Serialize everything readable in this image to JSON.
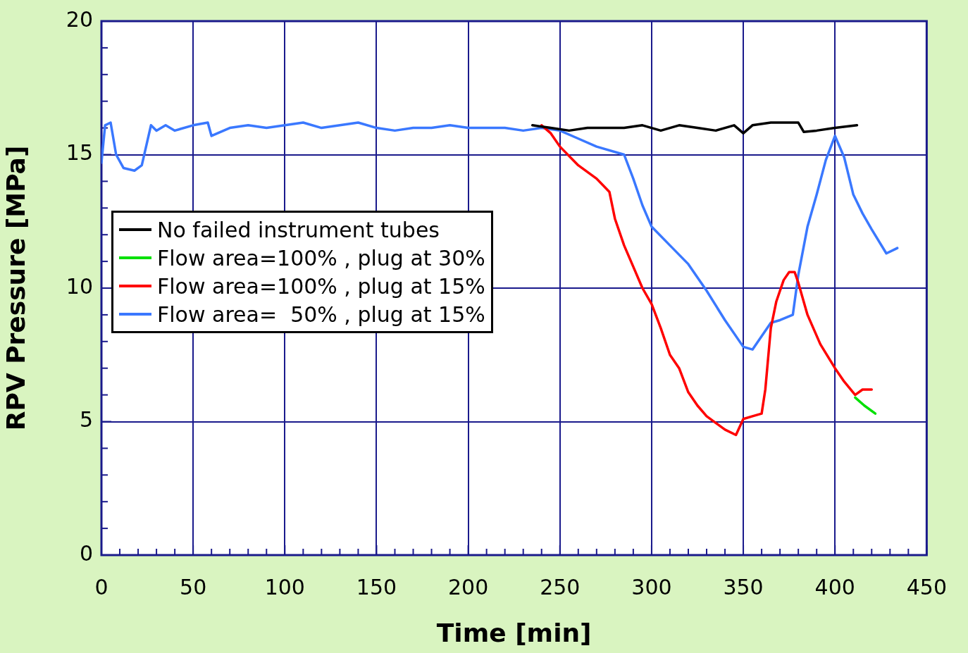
{
  "chart_data": {
    "type": "line",
    "xlabel": "Time [min]",
    "ylabel": "RPV Pressure [MPa]",
    "xlim": [
      0,
      450
    ],
    "ylim": [
      0,
      20
    ],
    "xticks": [
      0,
      {
        "value": 10,
        "label": null
      },
      {
        "value": 20,
        "label": null
      },
      {
        "value": 30,
        "label": null
      },
      {
        "value": 40,
        "label": null
      },
      50,
      {
        "value": 60,
        "label": null
      },
      {
        "value": 70,
        "label": null
      },
      {
        "value": 80,
        "label": null
      },
      {
        "value": 90,
        "label": null
      },
      100,
      {
        "value": 110,
        "label": null
      },
      {
        "value": 120,
        "label": null
      },
      {
        "value": 130,
        "label": null
      },
      {
        "value": 140,
        "label": null
      },
      150,
      {
        "value": 160,
        "label": null
      },
      {
        "value": 170,
        "label": null
      },
      {
        "value": 180,
        "label": null
      },
      {
        "value": 190,
        "label": null
      },
      200,
      {
        "value": 210,
        "label": null
      },
      {
        "value": 220,
        "label": null
      },
      {
        "value": 230,
        "label": null
      },
      {
        "value": 240,
        "label": null
      },
      250,
      {
        "value": 260,
        "label": null
      },
      {
        "value": 270,
        "label": null
      },
      {
        "value": 280,
        "label": null
      },
      {
        "value": 290,
        "label": null
      },
      300,
      {
        "value": 310,
        "label": null
      },
      {
        "value": 320,
        "label": null
      },
      {
        "value": 330,
        "label": null
      },
      {
        "value": 340,
        "label": null
      },
      350,
      {
        "value": 360,
        "label": null
      },
      {
        "value": 370,
        "label": null
      },
      {
        "value": 380,
        "label": null
      },
      {
        "value": 390,
        "label": null
      },
      400,
      {
        "value": 410,
        "label": null
      },
      {
        "value": 420,
        "label": null
      },
      {
        "value": 430,
        "label": null
      },
      {
        "value": 440,
        "label": null
      },
      450
    ],
    "yticks": [
      0,
      {
        "value": 1,
        "label": null
      },
      {
        "value": 2,
        "label": null
      },
      {
        "value": 3,
        "label": null
      },
      {
        "value": 4,
        "label": null
      },
      5,
      {
        "value": 6,
        "label": null
      },
      {
        "value": 7,
        "label": null
      },
      {
        "value": 8,
        "label": null
      },
      {
        "value": 9,
        "label": null
      },
      10,
      {
        "value": 11,
        "label": null
      },
      {
        "value": 12,
        "label": null
      },
      {
        "value": 13,
        "label": null
      },
      {
        "value": 14,
        "label": null
      },
      15,
      {
        "value": 16,
        "label": null
      },
      {
        "value": 17,
        "label": null
      },
      {
        "value": 18,
        "label": null
      },
      {
        "value": 19,
        "label": null
      },
      20
    ],
    "grid": true,
    "legend": "top left",
    "marker": "none",
    "line_style": "solid",
    "series": [
      {
        "name": "No failed instrument tubes",
        "color": "#000000",
        "x": [
          235,
          245,
          255,
          265,
          275,
          285,
          295,
          305,
          315,
          325,
          335,
          345,
          350,
          355,
          365,
          375,
          380,
          383,
          390,
          400,
          412
        ],
        "values": [
          16.1,
          16.0,
          15.9,
          16.0,
          16.0,
          16.0,
          16.1,
          15.9,
          16.1,
          16.0,
          15.9,
          16.1,
          15.8,
          16.1,
          16.2,
          16.2,
          16.2,
          15.85,
          15.9,
          16.0,
          16.1
        ]
      },
      {
        "name": "Flow area=100% , plug at 30%",
        "color": "#00e000",
        "x": [
          411,
          416,
          422
        ],
        "values": [
          5.9,
          5.6,
          5.3
        ]
      },
      {
        "name": "Flow area=100% , plug at 15%",
        "color": "#ff0000",
        "x": [
          240,
          245,
          250,
          260,
          270,
          277,
          280,
          285,
          290,
          295,
          300,
          305,
          310,
          315,
          320,
          325,
          330,
          340,
          346,
          350,
          355,
          360,
          362,
          365,
          368,
          372,
          375,
          378,
          380,
          385,
          392,
          400,
          405,
          411,
          415,
          420
        ],
        "values": [
          16.1,
          15.8,
          15.3,
          14.6,
          14.1,
          13.6,
          12.6,
          11.6,
          10.8,
          10.0,
          9.4,
          8.5,
          7.5,
          7.0,
          6.1,
          5.6,
          5.2,
          4.7,
          4.5,
          5.1,
          5.2,
          5.3,
          6.2,
          8.5,
          9.5,
          10.3,
          10.6,
          10.6,
          10.2,
          9.0,
          7.9,
          7.0,
          6.5,
          6.0,
          6.2,
          6.2
        ]
      },
      {
        "name": "Flow area=  50% , plug at 15%",
        "color": "#3a78ff",
        "x": [
          0,
          2,
          5,
          8,
          12,
          18,
          22,
          25,
          27,
          30,
          35,
          40,
          50,
          58,
          60,
          70,
          80,
          90,
          100,
          110,
          120,
          130,
          140,
          150,
          160,
          170,
          180,
          190,
          200,
          210,
          220,
          230,
          240,
          250,
          260,
          270,
          285,
          290,
          295,
          300,
          310,
          320,
          330,
          340,
          350,
          355,
          360,
          365,
          370,
          377,
          380,
          385,
          390,
          395,
          400,
          405,
          410,
          415,
          420,
          428,
          434
        ],
        "values": [
          14.7,
          16.1,
          16.2,
          15.0,
          14.5,
          14.4,
          14.6,
          15.5,
          16.1,
          15.9,
          16.1,
          15.9,
          16.1,
          16.2,
          15.7,
          16.0,
          16.1,
          16.0,
          16.1,
          16.2,
          16.0,
          16.1,
          16.2,
          16.0,
          15.9,
          16.0,
          16.0,
          16.1,
          16.0,
          16.0,
          16.0,
          15.9,
          16.0,
          15.9,
          15.6,
          15.3,
          15.0,
          14.1,
          13.1,
          12.3,
          11.6,
          10.9,
          9.9,
          8.8,
          7.8,
          7.7,
          8.2,
          8.7,
          8.8,
          9.0,
          10.5,
          12.3,
          13.5,
          14.8,
          15.7,
          14.9,
          13.5,
          12.8,
          12.2,
          11.3,
          11.5
        ]
      }
    ]
  }
}
